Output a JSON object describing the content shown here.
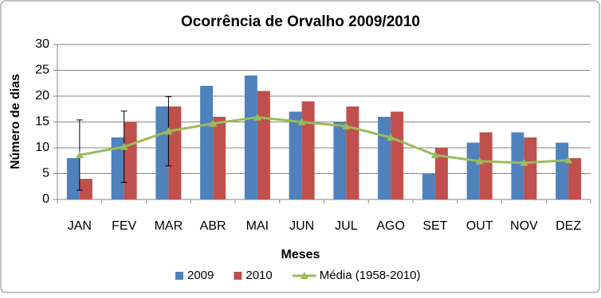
{
  "chart_data": {
    "type": "bar",
    "title": "Ocorrência de Orvalho 2009/2010",
    "x_label": "Meses",
    "y_label": "Número de dias",
    "categories": [
      "JAN",
      "FEV",
      "MAR",
      "ABR",
      "MAI",
      "JUN",
      "JUL",
      "AGO",
      "SET",
      "OUT",
      "NOV",
      "DEZ"
    ],
    "series": [
      {
        "name": "2009",
        "type": "bar",
        "color": "#4f81bd",
        "values": [
          8,
          12,
          18,
          22,
          24,
          17,
          15,
          16,
          5,
          11,
          13,
          11
        ]
      },
      {
        "name": "2010",
        "type": "bar",
        "color": "#c0504d",
        "values": [
          4,
          15,
          18,
          16,
          21,
          19,
          18,
          17,
          10,
          13,
          12,
          8
        ]
      },
      {
        "name": "Média (1958-2010)",
        "type": "line",
        "color": "#9bbb59",
        "values": [
          8.6,
          10.2,
          13.2,
          14.7,
          15.9,
          15.0,
          14.2,
          12.0,
          8.6,
          7.4,
          7.1,
          7.6
        ],
        "errors": [
          6.8,
          6.9,
          6.7,
          null,
          null,
          null,
          null,
          null,
          null,
          null,
          null,
          null
        ]
      }
    ],
    "ylim": [
      0,
      30
    ],
    "yticks": [
      0,
      5,
      10,
      15,
      20,
      25,
      30
    ],
    "grid": true,
    "legend": "bottom"
  }
}
